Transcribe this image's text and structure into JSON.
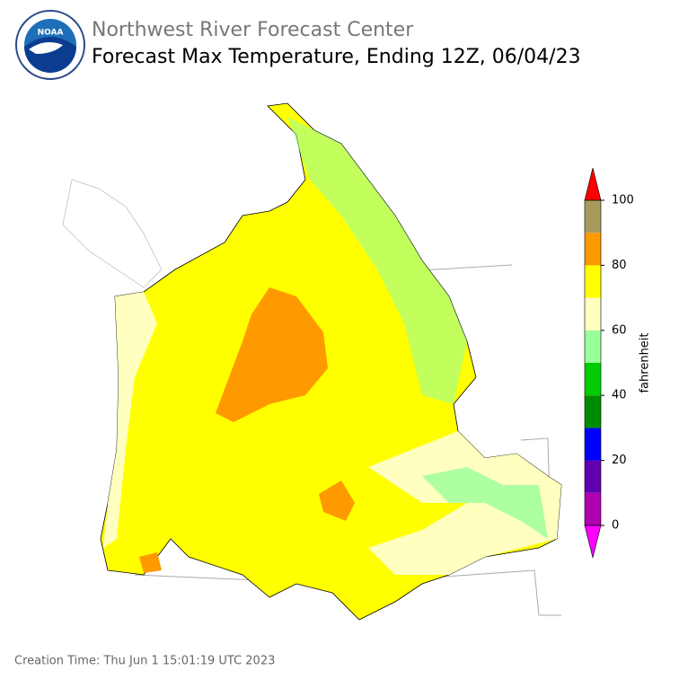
{
  "header": {
    "title": "Northwest River Forecast Center",
    "subtitle": "Forecast Max Temperature, Ending 12Z, 06/04/23"
  },
  "colorbar": {
    "label": "fahrenheit",
    "range": [
      0,
      100
    ],
    "ticks": [
      0,
      20,
      40,
      60,
      80,
      100
    ],
    "bounds": [
      0,
      10,
      20,
      30,
      40,
      50,
      60,
      70,
      80,
      90,
      100
    ],
    "colors": [
      "#b000b0",
      "#6000b0",
      "#0000ff",
      "#008c00",
      "#00cc00",
      "#99ff99",
      "#ffffc0",
      "#ffff00",
      "#ff9900",
      "#a89a5c"
    ],
    "under_color": "#ff00ff",
    "over_color": "#ff0000"
  },
  "footer": {
    "creation_time": "Creation Time: Thu Jun 1 15:01:19 UTC 2023"
  }
}
